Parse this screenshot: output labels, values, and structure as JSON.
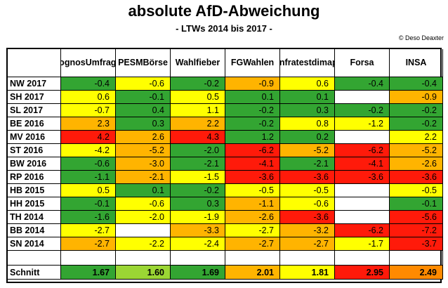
{
  "title": "absolute AfD-Abweichung",
  "subtitle": "- LTWs 2014 bis 2017 -",
  "credit": "© Deso Deaxter",
  "colors": {
    "dark_green": "#33a532",
    "light_green": "#9bd634",
    "yellow": "#ffff00",
    "orange": "#ffb400",
    "red_orange": "#ff8a00",
    "red": "#ff1a0a"
  },
  "chart_data": {
    "type": "table",
    "title": "absolute AfD-Abweichung",
    "subtitle": "- LTWs 2014 bis 2017 -",
    "columns": [
      [
        "Prognos",
        "Umfragen"
      ],
      [
        "PESM",
        "Börse"
      ],
      [
        "Wahl",
        "fieber"
      ],
      [
        "FG",
        "Wahlen"
      ],
      [
        "Infratest",
        "dimap"
      ],
      [
        "Forsa"
      ],
      [
        "INSA"
      ]
    ],
    "rows": [
      {
        "label": "NW 2017",
        "values": [
          "-0.4",
          "-0.6",
          "-0.2",
          "-0.9",
          "0.6",
          "-0.4",
          "-0.4"
        ],
        "colors": [
          "dark_green",
          "yellow",
          "dark_green",
          "orange",
          "yellow",
          "dark_green",
          "dark_green"
        ]
      },
      {
        "label": "SH 2017",
        "values": [
          "0.6",
          "-0.1",
          "0.5",
          "0.1",
          "0.1",
          "",
          "-0.9"
        ],
        "colors": [
          "yellow",
          "dark_green",
          "yellow",
          "dark_green",
          "dark_green",
          "",
          "orange"
        ]
      },
      {
        "label": "SL 2017",
        "values": [
          "-0.7",
          "0.4",
          "1.1",
          "-0.2",
          "0.3",
          "-0.2",
          "-0.2"
        ],
        "colors": [
          "yellow",
          "dark_green",
          "yellow",
          "dark_green",
          "dark_green",
          "dark_green",
          "dark_green"
        ]
      },
      {
        "label": "BE 2016",
        "values": [
          "2.3",
          "0.3",
          "2.2",
          "-0.2",
          "0.8",
          "-1.2",
          "-0.2"
        ],
        "colors": [
          "orange",
          "dark_green",
          "orange",
          "dark_green",
          "yellow",
          "yellow",
          "dark_green"
        ]
      },
      {
        "label": "MV 2016",
        "values": [
          "4.2",
          "2.6",
          "4.3",
          "1.2",
          "0.2",
          "",
          "2.2"
        ],
        "colors": [
          "red",
          "orange",
          "red",
          "dark_green",
          "dark_green",
          "",
          "yellow"
        ]
      },
      {
        "label": "ST 2016",
        "values": [
          "-4.2",
          "-5.2",
          "-2.0",
          "-6.2",
          "-5.2",
          "-6.2",
          "-5.2"
        ],
        "colors": [
          "yellow",
          "orange",
          "dark_green",
          "red",
          "orange",
          "red",
          "orange"
        ]
      },
      {
        "label": "BW 2016",
        "values": [
          "-0.6",
          "-3.0",
          "-2.1",
          "-4.1",
          "-2.1",
          "-4.1",
          "-2.6"
        ],
        "colors": [
          "dark_green",
          "orange",
          "dark_green",
          "red",
          "dark_green",
          "red",
          "orange"
        ]
      },
      {
        "label": "RP 2016",
        "values": [
          "-1.1",
          "-2.1",
          "-1.5",
          "-3.6",
          "-3.6",
          "-3.6",
          "-3.6"
        ],
        "colors": [
          "dark_green",
          "orange",
          "yellow",
          "red",
          "red",
          "red",
          "red"
        ]
      },
      {
        "label": "HB 2015",
        "values": [
          "0.5",
          "0.1",
          "-0.2",
          "-0.5",
          "-0.5",
          "",
          "-0.5"
        ],
        "colors": [
          "yellow",
          "dark_green",
          "dark_green",
          "yellow",
          "yellow",
          "",
          "yellow"
        ]
      },
      {
        "label": "HH 2015",
        "values": [
          "-0.1",
          "-0.6",
          "0.3",
          "-1.1",
          "-0.6",
          "",
          "-0.1"
        ],
        "colors": [
          "dark_green",
          "yellow",
          "dark_green",
          "orange",
          "yellow",
          "",
          "dark_green"
        ]
      },
      {
        "label": "TH 2014",
        "values": [
          "-1.6",
          "-2.0",
          "-1.9",
          "-2.6",
          "-3.6",
          "",
          "-5.6"
        ],
        "colors": [
          "dark_green",
          "yellow",
          "yellow",
          "orange",
          "red",
          "",
          "red"
        ]
      },
      {
        "label": "BB 2014",
        "values": [
          "-2.7",
          "",
          "-3.3",
          "-2.7",
          "-3.2",
          "-6.2",
          "-7.2"
        ],
        "colors": [
          "yellow",
          "",
          "orange",
          "yellow",
          "orange",
          "red",
          "red"
        ]
      },
      {
        "label": "SN 2014",
        "values": [
          "-2.7",
          "-2.2",
          "-2.4",
          "-2.7",
          "-2.7",
          "-1.7",
          "-3.7"
        ],
        "colors": [
          "orange",
          "yellow",
          "yellow",
          "orange",
          "orange",
          "yellow",
          "red"
        ]
      }
    ],
    "average": {
      "label": "Schnitt",
      "values": [
        "1.67",
        "1.60",
        "1.69",
        "2.01",
        "1.81",
        "2.95",
        "2.49"
      ],
      "colors": [
        "dark_green",
        "light_green",
        "dark_green",
        "orange",
        "yellow",
        "red",
        "red_orange"
      ]
    }
  }
}
